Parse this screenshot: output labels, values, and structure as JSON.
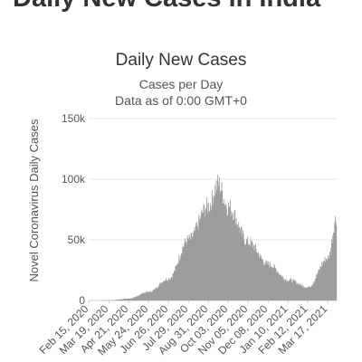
{
  "page": {
    "heading": "Daily New Cases in India"
  },
  "chart_data": {
    "type": "bar",
    "title": "Daily New Cases",
    "subtitle_lines": [
      "Cases per Day",
      "Data as of 0:00 GMT+0"
    ],
    "xlabel": "",
    "ylabel": "Novel Coronavirus Daily Cases",
    "ylim": [
      0,
      150000
    ],
    "yticks": [
      0,
      50000,
      100000,
      150000
    ],
    "ytick_labels": [
      "0",
      "50k",
      "100k",
      "150k"
    ],
    "grid": true,
    "legend": "none",
    "bar_color": "#999999",
    "x_tick_labels": [
      "Feb 15, 2020",
      "Mar 19, 2020",
      "Apr 21, 2020",
      "May 24, 2020",
      "Jun 26, 2020",
      "Jul 29, 2020",
      "Aug 31, 2020",
      "Oct 03, 2020",
      "Nov 05, 2020",
      "Dec 08, 2020",
      "Jan 10, 2021",
      "Feb 12, 2021",
      "Mar 17, 2021"
    ],
    "series": [
      {
        "x_start": "Feb 15, 2020",
        "x_end": "Mar 31, 2021",
        "key_points": [
          [
            "Feb 15, 2020",
            0
          ],
          [
            "Mar 19, 2020",
            100
          ],
          [
            "Apr 21, 2020",
            1500
          ],
          [
            "May 24, 2020",
            7000
          ],
          [
            "Jun 26, 2020",
            18000
          ],
          [
            "Jul 29, 2020",
            50000
          ],
          [
            "Aug 31, 2020",
            78000
          ],
          [
            "Sep 16, 2020",
            96000
          ],
          [
            "Oct 03, 2020",
            77000
          ],
          [
            "Nov 05, 2020",
            48000
          ],
          [
            "Dec 08, 2020",
            30000
          ],
          [
            "Jan 10, 2021",
            17000
          ],
          [
            "Feb 12, 2021",
            11000
          ],
          [
            "Mar 17, 2021",
            35000
          ],
          [
            "Mar 31, 2021",
            68000
          ]
        ]
      }
    ]
  }
}
